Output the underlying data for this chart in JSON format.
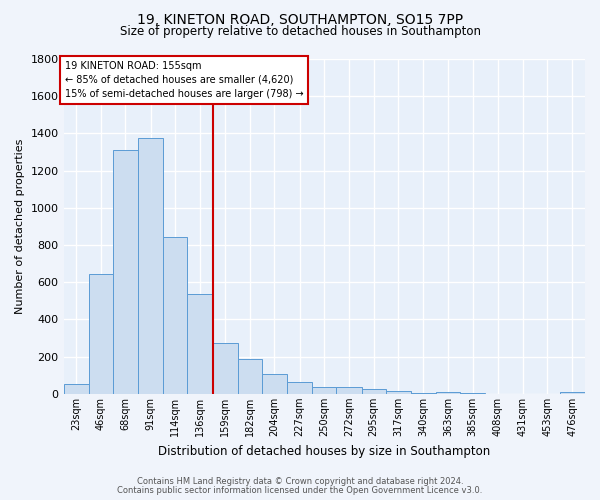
{
  "title_line1": "19, KINETON ROAD, SOUTHAMPTON, SO15 7PP",
  "title_line2": "Size of property relative to detached houses in Southampton",
  "xlabel": "Distribution of detached houses by size in Southampton",
  "ylabel": "Number of detached properties",
  "footer_line1": "Contains HM Land Registry data © Crown copyright and database right 2024.",
  "footer_line2": "Contains public sector information licensed under the Open Government Licence v3.0.",
  "annotation_title": "19 KINETON ROAD: 155sqm",
  "annotation_line1": "← 85% of detached houses are smaller (4,620)",
  "annotation_line2": "15% of semi-detached houses are larger (798) →",
  "property_line_x": 159,
  "bar_categories": [
    "23sqm",
    "46sqm",
    "68sqm",
    "91sqm",
    "114sqm",
    "136sqm",
    "159sqm",
    "182sqm",
    "204sqm",
    "227sqm",
    "250sqm",
    "272sqm",
    "295sqm",
    "317sqm",
    "340sqm",
    "363sqm",
    "385sqm",
    "408sqm",
    "431sqm",
    "453sqm",
    "476sqm"
  ],
  "bar_values": [
    55,
    645,
    1310,
    1375,
    845,
    535,
    275,
    185,
    105,
    65,
    35,
    35,
    25,
    15,
    5,
    10,
    5,
    0,
    0,
    0,
    10
  ],
  "bar_edges": [
    23,
    46,
    68,
    91,
    114,
    136,
    159,
    182,
    204,
    227,
    250,
    272,
    295,
    317,
    340,
    363,
    385,
    408,
    431,
    453,
    476,
    499
  ],
  "bar_color": "#ccddf0",
  "bar_edge_color": "#5b9bd5",
  "vline_color": "#cc0000",
  "fig_bg_color": "#f0f4fb",
  "ax_bg_color": "#e8f0fa",
  "grid_color": "#ffffff",
  "ylim": [
    0,
    1800
  ],
  "yticks": [
    0,
    200,
    400,
    600,
    800,
    1000,
    1200,
    1400,
    1600,
    1800
  ],
  "title1_fontsize": 10,
  "title2_fontsize": 8.5,
  "ylabel_fontsize": 8,
  "xlabel_fontsize": 8.5
}
